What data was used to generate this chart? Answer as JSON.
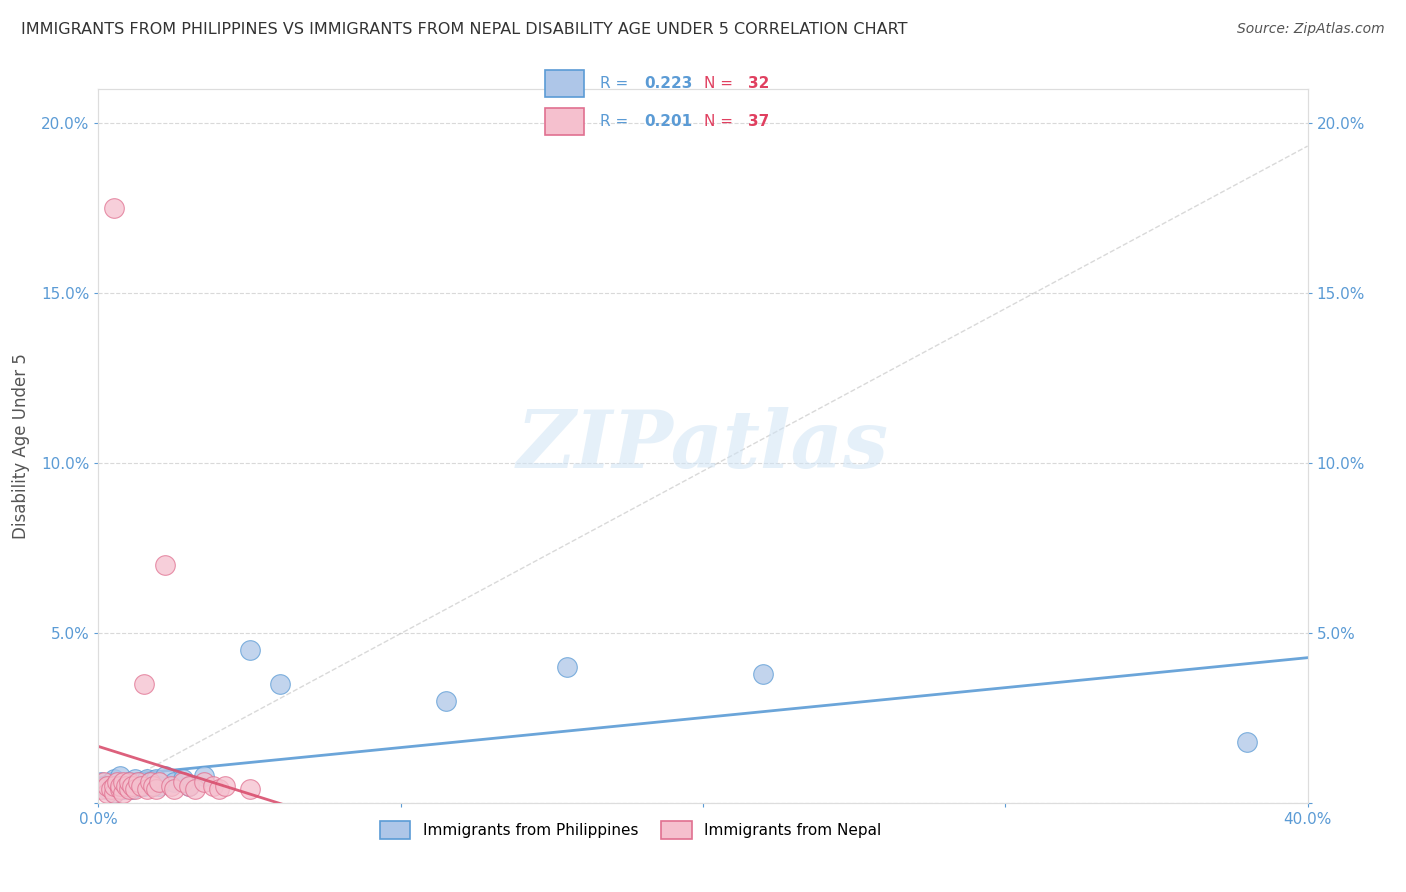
{
  "title": "IMMIGRANTS FROM PHILIPPINES VS IMMIGRANTS FROM NEPAL DISABILITY AGE UNDER 5 CORRELATION CHART",
  "source": "Source: ZipAtlas.com",
  "ylabel": "Disability Age Under 5",
  "xlim": [
    0.0,
    0.4
  ],
  "ylim": [
    0.0,
    0.21
  ],
  "xticks": [
    0.0,
    0.1,
    0.2,
    0.3,
    0.4
  ],
  "xtick_labels": [
    "0.0%",
    "",
    "",
    "",
    "40.0%"
  ],
  "yticks": [
    0.0,
    0.05,
    0.1,
    0.15,
    0.2
  ],
  "ytick_labels": [
    "",
    "5.0%",
    "10.0%",
    "15.0%",
    "20.0%"
  ],
  "right_ytick_labels": [
    "",
    "5.0%",
    "10.0%",
    "15.0%",
    "20.0%"
  ],
  "philippines_R": 0.223,
  "philippines_N": 32,
  "nepal_R": 0.201,
  "nepal_N": 37,
  "philippines_color": "#aec6e8",
  "nepal_color": "#f5c0ce",
  "philippines_edge_color": "#5b9bd5",
  "nepal_edge_color": "#e07090",
  "philippines_line_color": "#5b9bd5",
  "nepal_line_color": "#d94f6e",
  "legend_label_philippines": "Immigrants from Philippines",
  "legend_label_nepal": "Immigrants from Nepal",
  "background_color": "#ffffff",
  "grid_color": "#d0d0d0",
  "tick_color_blue": "#5b9bd5",
  "tick_color_red": "#e05070",
  "watermark": "ZIPatlas",
  "philippines_x": [
    0.001,
    0.002,
    0.003,
    0.004,
    0.005,
    0.005,
    0.006,
    0.007,
    0.008,
    0.009,
    0.01,
    0.011,
    0.012,
    0.013,
    0.014,
    0.015,
    0.016,
    0.017,
    0.018,
    0.019,
    0.02,
    0.022,
    0.025,
    0.028,
    0.03,
    0.035,
    0.05,
    0.06,
    0.115,
    0.155,
    0.22,
    0.38
  ],
  "philippines_y": [
    0.006,
    0.005,
    0.004,
    0.006,
    0.003,
    0.007,
    0.005,
    0.008,
    0.004,
    0.005,
    0.006,
    0.004,
    0.007,
    0.005,
    0.006,
    0.005,
    0.007,
    0.006,
    0.005,
    0.007,
    0.005,
    0.008,
    0.006,
    0.007,
    0.005,
    0.008,
    0.045,
    0.035,
    0.03,
    0.04,
    0.038,
    0.018
  ],
  "nepal_x": [
    0.001,
    0.002,
    0.003,
    0.003,
    0.004,
    0.005,
    0.005,
    0.005,
    0.006,
    0.007,
    0.007,
    0.008,
    0.008,
    0.009,
    0.01,
    0.01,
    0.011,
    0.012,
    0.013,
    0.014,
    0.015,
    0.016,
    0.017,
    0.018,
    0.019,
    0.02,
    0.022,
    0.024,
    0.025,
    0.028,
    0.03,
    0.032,
    0.035,
    0.038,
    0.04,
    0.042,
    0.05
  ],
  "nepal_y": [
    0.004,
    0.006,
    0.003,
    0.005,
    0.004,
    0.003,
    0.005,
    0.175,
    0.006,
    0.004,
    0.005,
    0.003,
    0.006,
    0.005,
    0.004,
    0.006,
    0.005,
    0.004,
    0.006,
    0.005,
    0.035,
    0.004,
    0.006,
    0.005,
    0.004,
    0.006,
    0.07,
    0.005,
    0.004,
    0.006,
    0.005,
    0.004,
    0.006,
    0.005,
    0.004,
    0.005,
    0.004
  ]
}
